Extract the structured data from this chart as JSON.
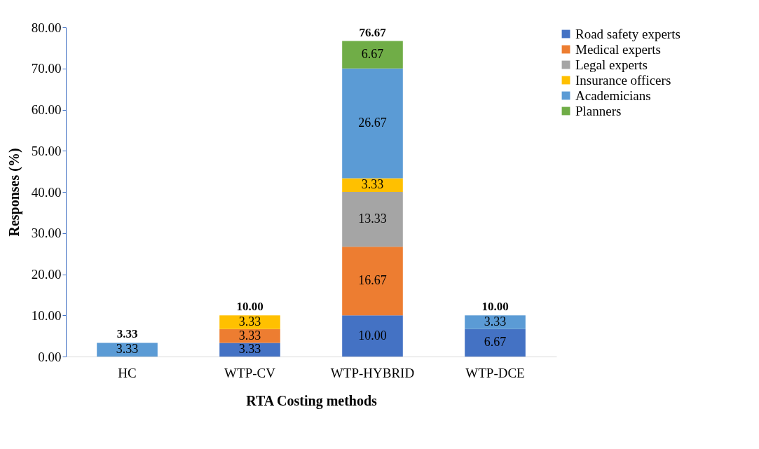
{
  "chart_data": {
    "type": "bar",
    "stacked": true,
    "xlabel": "RTA Costing methods",
    "ylabel": "Responses (%)",
    "categories": [
      "HC",
      "WTP-CV",
      "WTP-HYBRID",
      "WTP-DCE"
    ],
    "ylim": [
      0,
      80
    ],
    "yticks": [
      {
        "value": 0,
        "label": "0.00"
      },
      {
        "value": 10,
        "label": "10.00"
      },
      {
        "value": 20,
        "label": "20.00"
      },
      {
        "value": 30,
        "label": "30.00"
      },
      {
        "value": 40,
        "label": "40.00"
      },
      {
        "value": 50,
        "label": "50.00"
      },
      {
        "value": 60,
        "label": "60.00"
      },
      {
        "value": 70,
        "label": "70.00"
      },
      {
        "value": 80,
        "label": "80.00"
      }
    ],
    "legend": "right",
    "grid": false,
    "series": [
      {
        "name": "Road safety experts",
        "color": "#4472c4",
        "values": [
          null,
          3.33,
          10,
          6.67
        ],
        "value_labels": [
          null,
          "3.33",
          "10.00",
          "6.67"
        ]
      },
      {
        "name": "Medical experts",
        "color": "#ed7d31",
        "values": [
          null,
          3.33,
          16.67,
          null
        ],
        "value_labels": [
          null,
          "3.33",
          "16.67",
          null
        ]
      },
      {
        "name": "Legal experts",
        "color": "#a5a5a5",
        "values": [
          null,
          null,
          13.33,
          null
        ],
        "value_labels": [
          null,
          null,
          "13.33",
          null
        ]
      },
      {
        "name": "Insurance officers",
        "color": "#ffc000",
        "values": [
          null,
          3.33,
          3.33,
          null
        ],
        "value_labels": [
          null,
          "3.33",
          "3.33",
          null
        ]
      },
      {
        "name": "Academicians",
        "color": "#5b9bd5",
        "values": [
          3.33,
          null,
          26.67,
          3.33
        ],
        "value_labels": [
          "3.33",
          null,
          "26.67",
          "3.33"
        ]
      },
      {
        "name": "Planners",
        "color": "#70ad47",
        "values": [
          null,
          null,
          6.67,
          null
        ],
        "value_labels": [
          null,
          null,
          "6.67",
          null
        ]
      }
    ],
    "totals": [
      "3.33",
      "10.00",
      "76.67",
      "10.00"
    ]
  }
}
